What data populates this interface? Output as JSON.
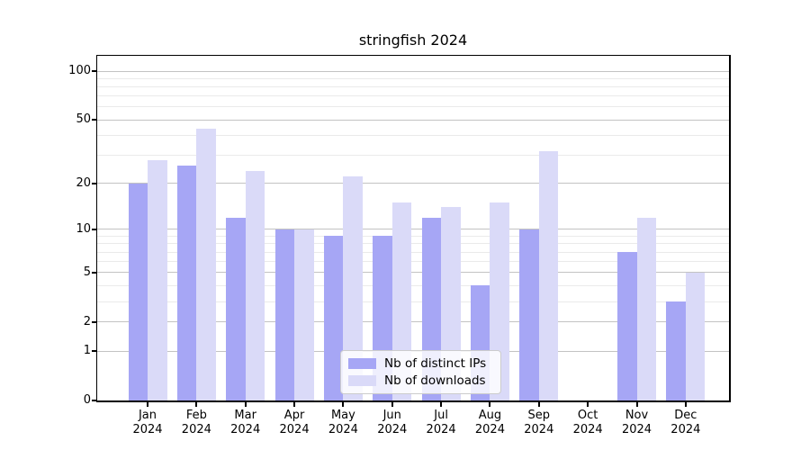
{
  "title": "stringfish 2024",
  "chart_data": {
    "type": "bar",
    "categories": [
      "Jan",
      "Feb",
      "Mar",
      "Apr",
      "May",
      "Jun",
      "Jul",
      "Aug",
      "Sep",
      "Oct",
      "Nov",
      "Dec"
    ],
    "year_label": "2024",
    "series": [
      {
        "name": "Nb of distinct IPs",
        "color": "#a6a6f5",
        "values": [
          20,
          26,
          12,
          10,
          9,
          9,
          12,
          4,
          10,
          0,
          7,
          3
        ]
      },
      {
        "name": "Nb of downloads",
        "color": "#dadaf8",
        "values": [
          28,
          44,
          24,
          10,
          22,
          15,
          14,
          15,
          32,
          0,
          12,
          5
        ]
      }
    ],
    "title": "stringfish 2024",
    "xlabel": "",
    "ylabel": "",
    "yscale": "log1p",
    "ylim": [
      0,
      125
    ],
    "y_tick_labels": [
      100,
      50,
      20,
      10,
      5,
      2,
      1,
      0
    ],
    "y_major_gridlines": [
      1,
      2,
      5,
      10,
      20,
      50,
      100
    ],
    "y_minor_gridlines": [
      3,
      4,
      6,
      7,
      8,
      9,
      30,
      40,
      60,
      70,
      80,
      90
    ],
    "grid": "horizontal",
    "legend_position": "lower center"
  },
  "colors": {
    "background": "#ffffff",
    "bar_distinct_ips": "#a6a6f5",
    "bar_downloads": "#dadaf8",
    "grid_major": "#c3c3c3",
    "grid_minor": "#eaeaea",
    "axis": "#000000",
    "legend_border": "#cccccc"
  }
}
